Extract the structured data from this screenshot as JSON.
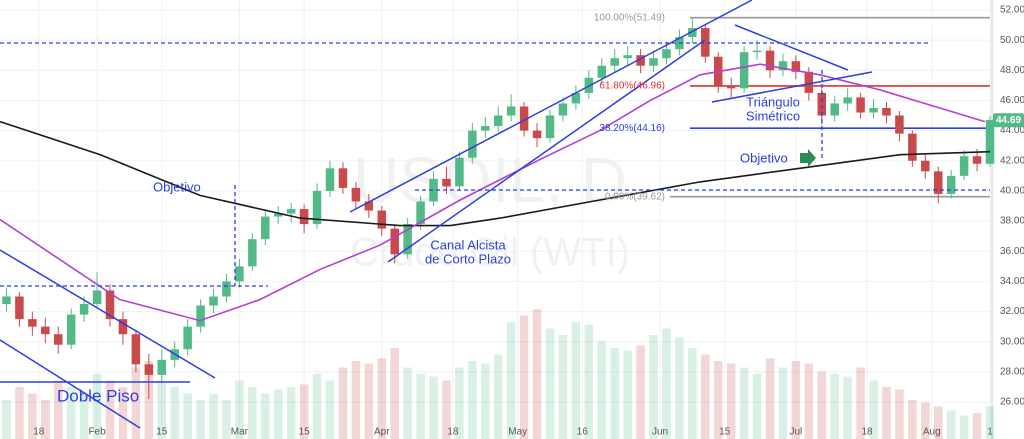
{
  "chart_data": {
    "type": "candlestick",
    "watermark": [
      "USOIL, D",
      "Crude Oil (WTI)"
    ],
    "x": [
      -4,
      -2,
      0,
      2,
      4,
      6,
      8,
      10,
      12,
      14,
      16,
      18,
      20,
      22,
      24,
      26,
      28,
      30,
      32,
      34,
      36,
      38,
      40,
      42,
      44,
      46,
      48,
      50,
      52,
      54,
      56,
      58,
      60,
      62,
      64,
      66,
      68,
      70,
      72,
      74,
      76,
      78,
      80,
      82,
      84,
      86,
      88,
      90,
      92,
      94,
      96,
      98,
      100,
      102,
      104,
      106,
      108,
      110,
      112,
      114,
      116,
      118,
      120,
      122,
      124,
      126,
      128,
      130,
      132,
      134,
      136,
      138,
      140,
      142,
      144,
      146,
      148
    ],
    "open": [
      32.5,
      33.0,
      31.5,
      31.0,
      30.5,
      29.8,
      31.8,
      32.5,
      33.4,
      31.5,
      30.5,
      28.5,
      27.8,
      28.8,
      29.5,
      31.0,
      32.4,
      33.0,
      34.0,
      35.0,
      36.8,
      38.3,
      38.5,
      38.8,
      37.8,
      40.0,
      41.5,
      40.2,
      39.3,
      38.7,
      37.5,
      35.8,
      37.8,
      39.3,
      40.8,
      40.3,
      42.2,
      44.0,
      44.3,
      45.0,
      45.6,
      44.0,
      43.5,
      45.0,
      45.8,
      46.5,
      47.5,
      48.3,
      48.8,
      49.0,
      48.3,
      48.8,
      49.4,
      50.2,
      50.8,
      48.9,
      47.0,
      46.8,
      49.2,
      49.3,
      48.0,
      48.6,
      47.9,
      46.5,
      45.0,
      45.8,
      46.2,
      45.2,
      45.5,
      45.0,
      43.8,
      42.0,
      41.3,
      39.8,
      41.0,
      42.3,
      41.8
    ],
    "high": [
      33.6,
      33.3,
      32.0,
      31.6,
      31.0,
      32.2,
      33.0,
      34.6,
      33.8,
      32.0,
      30.8,
      29.2,
      29.5,
      30.0,
      31.5,
      32.8,
      33.5,
      34.5,
      35.5,
      37.2,
      38.8,
      39.0,
      39.2,
      39.1,
      40.5,
      42.0,
      41.9,
      40.6,
      39.8,
      39.0,
      37.8,
      38.2,
      39.7,
      41.3,
      41.6,
      42.6,
      44.5,
      44.9,
      45.6,
      46.4,
      45.9,
      44.5,
      45.4,
      46.2,
      47.0,
      48.0,
      48.8,
      49.4,
      49.6,
      49.4,
      49.3,
      49.9,
      50.7,
      51.5,
      51.0,
      49.2,
      47.5,
      49.6,
      50.0,
      49.6,
      49.1,
      49.0,
      48.2,
      46.8,
      46.3,
      46.8,
      46.5,
      46.1,
      45.9,
      45.3,
      44.0,
      42.4,
      41.6,
      41.4,
      42.7,
      42.8,
      45.0
    ],
    "low": [
      32.0,
      31.0,
      30.4,
      29.9,
      29.2,
      29.5,
      31.3,
      32.2,
      31.0,
      29.8,
      28.0,
      26.2,
      27.3,
      28.3,
      29.1,
      30.6,
      31.9,
      32.6,
      33.6,
      34.7,
      36.4,
      37.8,
      37.9,
      37.2,
      37.5,
      39.6,
      39.8,
      38.8,
      38.2,
      37.0,
      35.2,
      35.5,
      37.4,
      39.0,
      39.8,
      40.0,
      41.8,
      43.5,
      43.9,
      44.6,
      43.6,
      42.9,
      43.2,
      44.6,
      45.4,
      46.1,
      47.1,
      47.9,
      48.3,
      47.8,
      47.9,
      48.4,
      49.0,
      49.8,
      48.5,
      46.5,
      46.2,
      46.5,
      48.7,
      47.5,
      47.6,
      47.4,
      46.0,
      44.4,
      44.6,
      45.3,
      44.8,
      44.8,
      44.5,
      43.3,
      41.6,
      40.8,
      39.2,
      39.5,
      40.7,
      41.3,
      41.6
    ],
    "close": [
      33.0,
      31.5,
      31.0,
      30.5,
      29.8,
      31.8,
      32.5,
      33.4,
      31.5,
      30.5,
      28.5,
      27.8,
      28.8,
      29.5,
      31.0,
      32.4,
      33.0,
      34.0,
      35.0,
      36.8,
      38.3,
      38.5,
      38.8,
      37.8,
      40.0,
      41.5,
      40.2,
      39.3,
      38.7,
      37.5,
      35.8,
      37.8,
      39.3,
      40.8,
      40.3,
      42.2,
      44.0,
      44.3,
      45.0,
      45.6,
      44.0,
      43.5,
      45.0,
      45.8,
      46.5,
      47.5,
      48.3,
      48.8,
      49.0,
      48.3,
      48.8,
      49.4,
      50.2,
      50.8,
      48.9,
      47.0,
      46.8,
      49.2,
      49.3,
      48.0,
      48.6,
      47.9,
      46.5,
      45.0,
      45.8,
      46.2,
      45.2,
      45.5,
      45.0,
      43.8,
      42.0,
      41.3,
      39.8,
      41.0,
      42.3,
      41.8,
      44.7
    ],
    "volume": [
      30,
      40,
      35,
      30,
      45,
      40,
      35,
      50,
      45,
      40,
      55,
      60,
      45,
      40,
      35,
      30,
      35,
      30,
      45,
      40,
      35,
      38,
      40,
      42,
      50,
      45,
      55,
      60,
      58,
      62,
      70,
      55,
      50,
      48,
      45,
      55,
      60,
      58,
      65,
      90,
      95,
      100,
      85,
      80,
      90,
      88,
      75,
      70,
      68,
      72,
      80,
      85,
      78,
      70,
      65,
      60,
      58,
      55,
      50,
      62,
      55,
      60,
      58,
      52,
      50,
      48,
      55,
      45,
      40,
      38,
      30,
      28,
      25,
      22,
      18,
      20,
      25
    ],
    "vlim": [
      0,
      100
    ],
    "up_color": "#53b987",
    "down_color": "#c94a4a",
    "series": [
      {
        "color": "#1a1a1a",
        "x": [
          -5,
          10.5,
          25.9,
          41.4,
          56.8,
          64.6,
          72.3,
          87.7,
          103.2,
          118.6,
          134.1,
          148
        ],
        "values": [
          44.6,
          42.4,
          39.7,
          38.2,
          37.7,
          37.7,
          38.2,
          39.4,
          40.6,
          41.5,
          42.4,
          42.6
        ]
      },
      {
        "color": "#b23fd6",
        "x": [
          -5,
          13.5,
          25.9,
          35.2,
          44.5,
          53.7,
          66.1,
          78.5,
          87.7,
          95.5,
          103.2,
          112.5,
          121.7,
          131,
          138.7,
          147.2
        ],
        "values": [
          38.1,
          32.8,
          31.4,
          32.8,
          34.8,
          36.4,
          39.4,
          42.1,
          44.0,
          46.0,
          47.7,
          48.4,
          47.7,
          46.7,
          45.7,
          44.6
        ]
      }
    ],
    "last_price": 44.69,
    "xlim": [
      -5,
      148
    ],
    "xticks": [
      {
        "value": 1,
        "label": "18"
      },
      {
        "value": 10,
        "label": "Feb"
      },
      {
        "value": 20,
        "label": "15"
      },
      {
        "value": 32,
        "label": "Mar"
      },
      {
        "value": 42,
        "label": "15"
      },
      {
        "value": 54,
        "label": "Apr"
      },
      {
        "value": 65,
        "label": "18"
      },
      {
        "value": 75,
        "label": "May"
      },
      {
        "value": 85,
        "label": "16"
      },
      {
        "value": 97,
        "label": "Jun"
      },
      {
        "value": 107,
        "label": "15"
      },
      {
        "value": 118,
        "label": "Jul"
      },
      {
        "value": 129,
        "label": "18"
      },
      {
        "value": 139,
        "label": "Aug"
      },
      {
        "value": 148,
        "label": "1"
      }
    ],
    "ylim": [
      23.55,
      52.66
    ],
    "yticks": [
      {
        "value": 26,
        "label": "26.00"
      },
      {
        "value": 28,
        "label": "28.00"
      },
      {
        "value": 30,
        "label": "30.00"
      },
      {
        "value": 32,
        "label": "32.00"
      },
      {
        "value": 34,
        "label": "34.00"
      },
      {
        "value": 36,
        "label": "36.00"
      },
      {
        "value": 38,
        "label": "38.00"
      },
      {
        "value": 40,
        "label": "40.00"
      },
      {
        "value": 42,
        "label": "42.00"
      },
      {
        "value": 44,
        "label": "44.00"
      },
      {
        "value": 46,
        "label": "46.00"
      },
      {
        "value": 48,
        "label": "48.00"
      },
      {
        "value": 50,
        "label": "50.00"
      },
      {
        "value": 52,
        "label": "52.00"
      }
    ],
    "grid": true,
    "fib_levels": [
      {
        "value": 51.49,
        "label": "100.00%(51.49)",
        "color": "#999999"
      },
      {
        "value": 46.96,
        "label": "61.80%(46.96)",
        "color": "#e03131"
      },
      {
        "value": 44.16,
        "label": "38.20%(44.16)",
        "color": "#2b3fe0"
      },
      {
        "value": 39.62,
        "label": "0.00%(39.62)",
        "color": "#999999"
      }
    ],
    "annotations": [
      "Objetivo",
      "Canal Alcista",
      "de Corto Plazo",
      "Triángulo",
      "Simétrico",
      "Objetivo",
      "Doble Piso"
    ]
  }
}
